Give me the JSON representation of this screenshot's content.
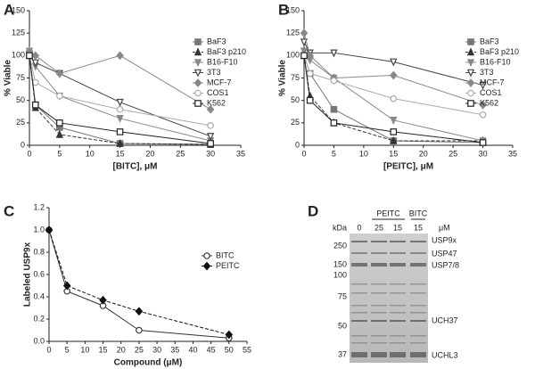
{
  "chart_data": [
    {
      "type": "line",
      "panel": "A",
      "x_label": "[BITC], μM",
      "y_label": "% Viable",
      "x": [
        0,
        1,
        5,
        15,
        30
      ],
      "xlim": [
        0,
        35
      ],
      "xticks": [
        0,
        5,
        10,
        15,
        20,
        25,
        30,
        35
      ],
      "ylim": [
        0,
        150
      ],
      "yticks": [
        0,
        25,
        50,
        75,
        100,
        125,
        150
      ],
      "series": [
        {
          "name": "BaF3",
          "color": "#777777",
          "marker": "square",
          "values": [
            100,
            45,
            20,
            2,
            1
          ]
        },
        {
          "name": "BaF3 p210",
          "color": "#333333",
          "marker": "triangle",
          "dashed": true,
          "values": [
            100,
            42,
            12,
            2,
            1
          ]
        },
        {
          "name": "B16-F10",
          "color": "#888888",
          "marker": "down-triangle",
          "values": [
            105,
            88,
            55,
            30,
            5
          ]
        },
        {
          "name": "3T3",
          "color": "#444444",
          "marker": "down-triangle",
          "open": true,
          "values": [
            100,
            92,
            80,
            48,
            10
          ]
        },
        {
          "name": "MCF-7",
          "color": "#888888",
          "marker": "diamond",
          "values": [
            105,
            100,
            80,
            100,
            40
          ]
        },
        {
          "name": "COS1",
          "color": "#aaaaaa",
          "marker": "circle",
          "open": true,
          "values": [
            100,
            70,
            55,
            40,
            22
          ]
        },
        {
          "name": "K562",
          "color": "#222222",
          "marker": "square",
          "open": true,
          "values": [
            100,
            45,
            25,
            15,
            2
          ]
        }
      ]
    },
    {
      "type": "line",
      "panel": "B",
      "x_label": "[PEITC], μM",
      "y_label": "% Viable",
      "x": [
        0,
        1,
        5,
        15,
        30
      ],
      "xlim": [
        0,
        35
      ],
      "xticks": [
        0,
        5,
        10,
        15,
        20,
        25,
        30,
        35
      ],
      "ylim": [
        0,
        150
      ],
      "yticks": [
        0,
        25,
        50,
        75,
        100,
        125,
        150
      ],
      "series": [
        {
          "name": "BaF3",
          "color": "#777777",
          "marker": "square",
          "values": [
            100,
            80,
            40,
            5,
            3
          ]
        },
        {
          "name": "BaF3 p210",
          "color": "#333333",
          "marker": "triangle",
          "dashed": true,
          "values": [
            100,
            55,
            25,
            5,
            5
          ]
        },
        {
          "name": "B16-F10",
          "color": "#888888",
          "marker": "down-triangle",
          "values": [
            105,
            95,
            75,
            28,
            5
          ]
        },
        {
          "name": "3T3",
          "color": "#444444",
          "marker": "down-triangle",
          "open": true,
          "values": [
            115,
            103,
            103,
            93,
            67
          ]
        },
        {
          "name": "MCF-7",
          "color": "#888888",
          "marker": "diamond",
          "values": [
            125,
            100,
            75,
            78,
            45
          ]
        },
        {
          "name": "COS1",
          "color": "#aaaaaa",
          "marker": "circle",
          "open": true,
          "values": [
            100,
            80,
            72,
            52,
            34
          ]
        },
        {
          "name": "K562",
          "color": "#222222",
          "marker": "square",
          "open": true,
          "values": [
            100,
            50,
            25,
            15,
            3
          ]
        }
      ]
    },
    {
      "type": "line",
      "panel": "C",
      "x_label": "Compound (μM)",
      "y_label": "Labeled USP9x",
      "x": [
        0,
        5,
        15,
        25,
        50
      ],
      "xlim": [
        0,
        55
      ],
      "xticks": [
        0,
        5,
        10,
        15,
        20,
        25,
        30,
        35,
        40,
        45,
        50,
        55
      ],
      "ylim": [
        0,
        1.2
      ],
      "yticks": [
        {
          "value": 0,
          "label": "0.0"
        },
        0.2,
        0.4,
        0.6,
        0.8,
        {
          "value": 1,
          "label": "1.0"
        },
        1.2
      ],
      "series": [
        {
          "name": "BITC",
          "color": "#333333",
          "marker": "circle",
          "open": true,
          "values": [
            1.0,
            0.45,
            0.32,
            0.1,
            0.03
          ]
        },
        {
          "name": "PEITC",
          "color": "#111111",
          "marker": "diamond",
          "dashed": true,
          "values": [
            1.0,
            0.5,
            0.37,
            0.27,
            0.06
          ]
        }
      ]
    }
  ],
  "gel": {
    "panel": "D",
    "unit_left": "kDa",
    "unit_right": "μM",
    "lanes": [
      "0",
      "25",
      "15",
      "15"
    ],
    "groups": [
      "PEITC",
      "BITC"
    ],
    "markers": [
      "250",
      "150",
      "100",
      "75",
      "50",
      "37"
    ],
    "bands": [
      "USP9x",
      "USP47",
      "USP7/8",
      "UCH37",
      "UCHL3"
    ]
  }
}
